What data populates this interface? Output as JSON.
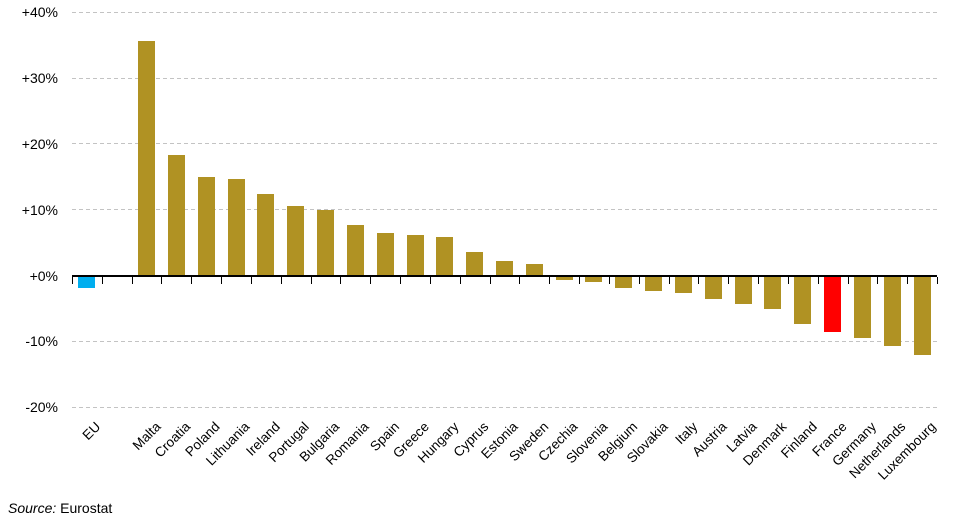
{
  "chart_data": {
    "type": "bar",
    "title": "",
    "xlabel": "",
    "ylabel": "",
    "unit": "%",
    "categories": [
      "EU",
      "Malta",
      "Croatia",
      "Poland",
      "Lithuania",
      "Ireland",
      "Portugal",
      "Bulgaria",
      "Romania",
      "Spain",
      "Greece",
      "Hungary",
      "Cyprus",
      "Estonia",
      "Sweden",
      "Czechia",
      "Slovenia",
      "Belgium",
      "Slovakia",
      "Italy",
      "Austria",
      "Latvia",
      "Denmark",
      "Finland",
      "France",
      "Germany",
      "Netherlands",
      "Luxembourg"
    ],
    "values": [
      -1.8,
      35.6,
      18.3,
      15.0,
      14.6,
      12.4,
      10.6,
      10.0,
      7.7,
      6.4,
      6.2,
      5.9,
      3.5,
      2.2,
      1.8,
      -0.5,
      -0.8,
      -1.8,
      -2.2,
      -2.5,
      -3.4,
      -4.2,
      -4.9,
      -7.2,
      -8.5,
      -9.4,
      -10.5,
      -11.9
    ],
    "highlight_colors": {
      "EU": "#00AEEF",
      "France": "#FF0000"
    },
    "default_bar_color": "#B09223",
    "ylim": [
      -20,
      40
    ],
    "ytick_labels": [
      "+40%",
      "+30%",
      "+20%",
      "+10%",
      "+0%",
      "-10%",
      "-20%"
    ],
    "ytick_values": [
      40,
      30,
      20,
      10,
      0,
      -10,
      -20
    ],
    "grid": "horizontal-dashed",
    "legend": "none",
    "gap_after_first_category": true
  },
  "source": {
    "label": "Source:",
    "text": " Eurostat"
  }
}
